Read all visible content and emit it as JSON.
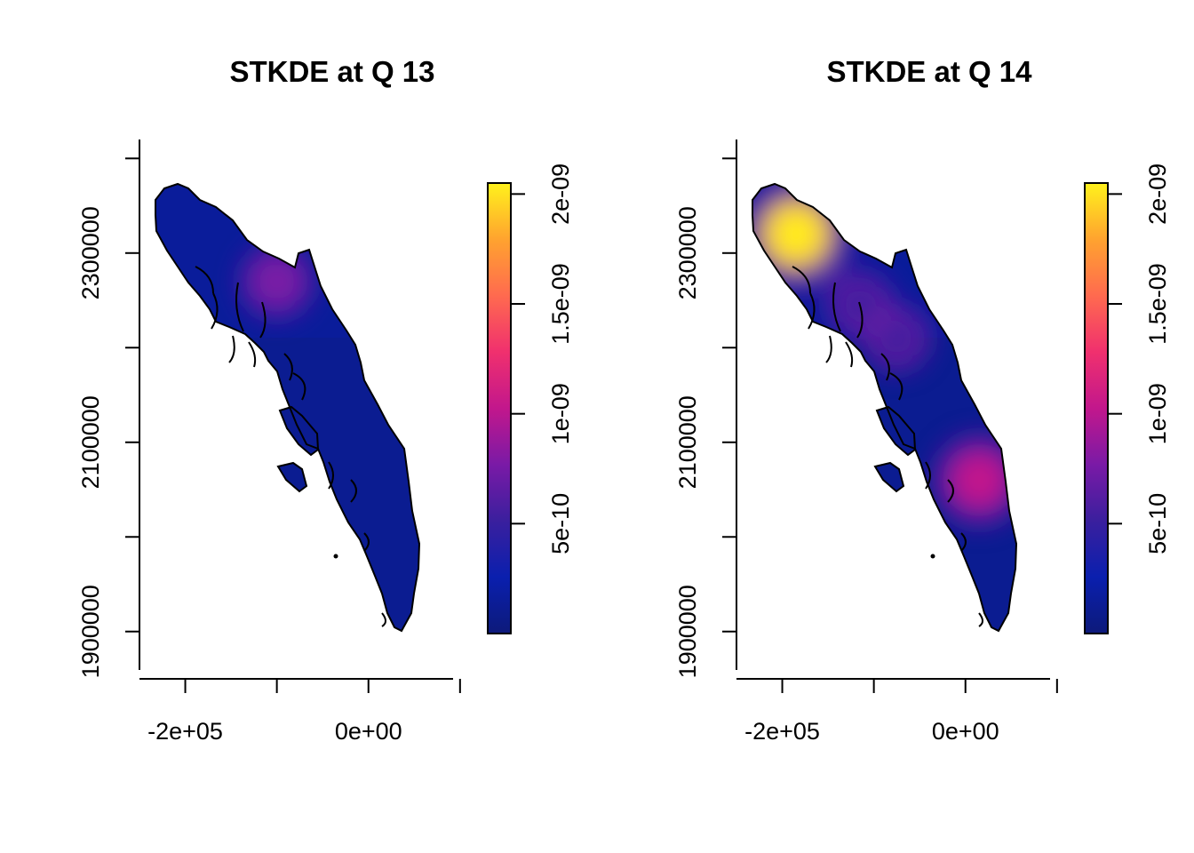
{
  "chart_data": [
    {
      "type": "heatmap",
      "title": "STKDE at Q 13",
      "xlabel": "",
      "ylabel": "",
      "xlim": [
        -250000,
        170000
      ],
      "ylim": [
        1850000,
        2420000
      ],
      "x_ticks": [
        -200000,
        -100000,
        0,
        100000
      ],
      "x_tick_labels": [
        "-2e+05",
        "",
        "0e+00",
        ""
      ],
      "y_ticks": [
        1900000,
        2000000,
        2100000,
        2200000,
        2300000,
        2400000
      ],
      "y_tick_labels": [
        "1900000",
        "",
        "2100000",
        "",
        "2300000",
        ""
      ],
      "colorbar": {
        "ticks": [
          5e-10,
          1e-09,
          1.5e-09,
          2e-09
        ],
        "tick_labels": [
          "5e-10",
          "1e-09",
          "1.5e-09",
          "2e-09"
        ],
        "range": [
          0,
          2.05e-09
        ],
        "colors": [
          "#0d1a7a",
          "#0a1fae",
          "#3a1f9e",
          "#7a1aa6",
          "#c2178c",
          "#f0306e",
          "#ff6a4f",
          "#ffa32f",
          "#fff21c"
        ]
      },
      "hotspots": [
        {
          "x": -100000,
          "y": 2270000,
          "density": 6.5e-10
        }
      ]
    },
    {
      "type": "heatmap",
      "title": "STKDE at Q 14",
      "xlabel": "",
      "ylabel": "",
      "xlim": [
        -250000,
        170000
      ],
      "ylim": [
        1850000,
        2420000
      ],
      "x_ticks": [
        -200000,
        -100000,
        0,
        100000
      ],
      "x_tick_labels": [
        "-2e+05",
        "",
        "0e+00",
        ""
      ],
      "y_ticks": [
        1900000,
        2000000,
        2100000,
        2200000,
        2300000,
        2400000
      ],
      "y_tick_labels": [
        "1900000",
        "",
        "2100000",
        "",
        "2300000",
        ""
      ],
      "colorbar": {
        "ticks": [
          5e-10,
          1e-09,
          1.5e-09,
          2e-09
        ],
        "tick_labels": [
          "5e-10",
          "1e-09",
          "1.5e-09",
          "2e-09"
        ],
        "range": [
          0,
          2.05e-09
        ],
        "colors": [
          "#0d1a7a",
          "#0a1fae",
          "#3a1f9e",
          "#7a1aa6",
          "#c2178c",
          "#f0306e",
          "#ff6a4f",
          "#ffa32f",
          "#fff21c"
        ]
      },
      "hotspots": [
        {
          "x": -185000,
          "y": 2320000,
          "density": 1.9e-09
        },
        {
          "x": 15000,
          "y": 2060000,
          "density": 1.2e-09
        },
        {
          "x": -75000,
          "y": 2210000,
          "density": 4.5e-10
        },
        {
          "x": -115000,
          "y": 2245000,
          "density": 4.5e-10
        }
      ]
    }
  ]
}
